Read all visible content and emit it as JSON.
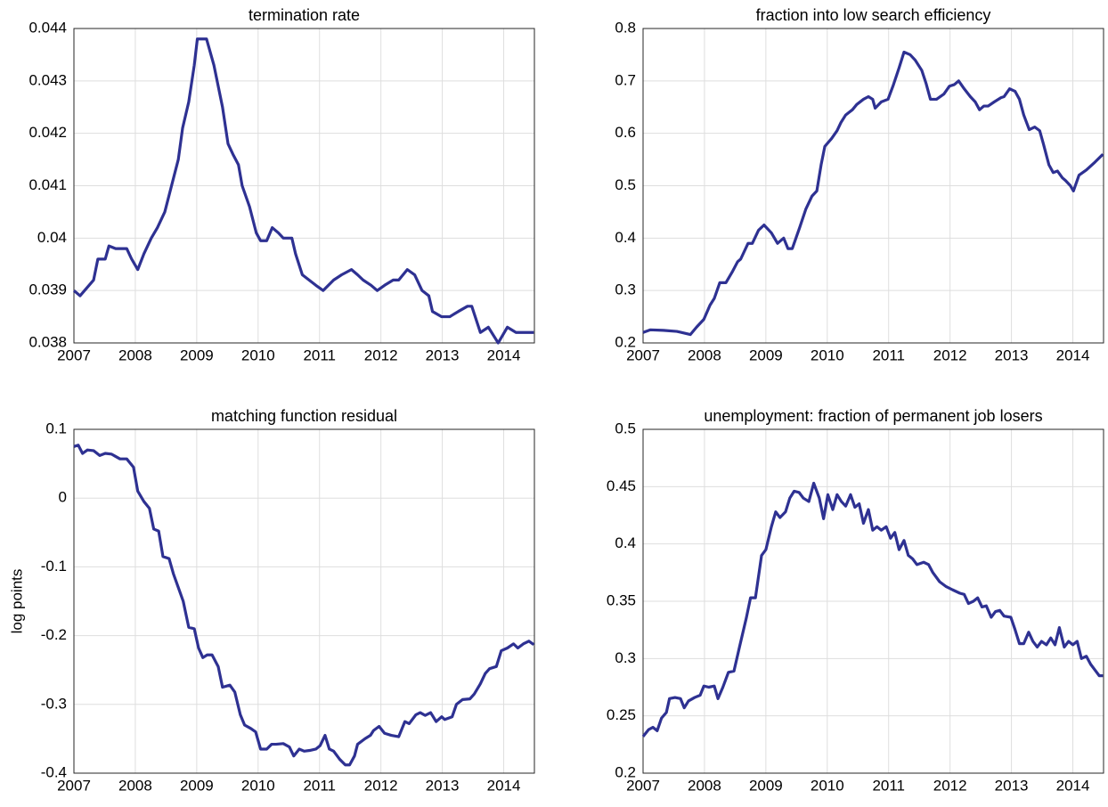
{
  "chart_data": [
    {
      "type": "line",
      "title": "termination rate",
      "color": "#2e3192",
      "grid": true,
      "xlim": [
        2007,
        2014.5
      ],
      "xticks": [
        2007,
        2008,
        2009,
        2010,
        2011,
        2012,
        2013,
        2014
      ],
      "ylim": [
        0.038,
        0.044
      ],
      "yticks": [
        0.038,
        0.039,
        0.04,
        0.041,
        0.042,
        0.043,
        0.044
      ],
      "x": [
        2007.0,
        2007.1,
        2007.32,
        2007.39,
        2007.51,
        2007.57,
        2007.68,
        2007.86,
        2007.94,
        2008.04,
        2008.14,
        2008.26,
        2008.36,
        2008.48,
        2008.59,
        2008.7,
        2008.77,
        2008.87,
        2008.96,
        2009.01,
        2009.16,
        2009.28,
        2009.42,
        2009.51,
        2009.59,
        2009.68,
        2009.74,
        2009.86,
        2009.97,
        2010.04,
        2010.14,
        2010.23,
        2010.33,
        2010.41,
        2010.55,
        2010.61,
        2010.72,
        2010.83,
        2010.94,
        2011.06,
        2011.23,
        2011.36,
        2011.52,
        2011.62,
        2011.71,
        2011.84,
        2011.94,
        2012.06,
        2012.2,
        2012.29,
        2012.43,
        2012.55,
        2012.67,
        2012.78,
        2012.84,
        2012.99,
        2013.12,
        2013.26,
        2013.41,
        2013.48,
        2013.62,
        2013.75,
        2013.91,
        2014.06,
        2014.2,
        2014.42,
        2014.49
      ],
      "values": [
        0.039,
        0.0389,
        0.0392,
        0.0396,
        0.0396,
        0.03985,
        0.0398,
        0.0398,
        0.0396,
        0.0394,
        0.0397,
        0.04,
        0.0402,
        0.0405,
        0.041,
        0.0415,
        0.0421,
        0.0426,
        0.0433,
        0.0438,
        0.0438,
        0.0433,
        0.0425,
        0.0418,
        0.0416,
        0.0414,
        0.041,
        0.0406,
        0.0401,
        0.03995,
        0.03995,
        0.0402,
        0.0401,
        0.04,
        0.04,
        0.0397,
        0.0393,
        0.0392,
        0.0391,
        0.039,
        0.0392,
        0.0393,
        0.0394,
        0.0393,
        0.0392,
        0.0391,
        0.039,
        0.0391,
        0.0392,
        0.0392,
        0.0394,
        0.0393,
        0.039,
        0.0389,
        0.0386,
        0.0385,
        0.0385,
        0.0386,
        0.0387,
        0.0387,
        0.0382,
        0.0383,
        0.038,
        0.0383,
        0.0382,
        0.0382,
        0.0382
      ]
    },
    {
      "type": "line",
      "title": "fraction into low search efficiency",
      "color": "#2e3192",
      "grid": true,
      "xlim": [
        2007,
        2014.5
      ],
      "xticks": [
        2007,
        2008,
        2009,
        2010,
        2011,
        2012,
        2013,
        2014
      ],
      "ylim": [
        0.2,
        0.8
      ],
      "yticks": [
        0.2,
        0.3,
        0.4,
        0.5,
        0.6,
        0.7,
        0.8
      ],
      "x": [
        2007.0,
        2007.12,
        2007.33,
        2007.55,
        2007.7,
        2007.77,
        2007.87,
        2007.99,
        2008.09,
        2008.16,
        2008.25,
        2008.35,
        2008.45,
        2008.54,
        2008.59,
        2008.71,
        2008.78,
        2008.88,
        2008.97,
        2009.09,
        2009.19,
        2009.29,
        2009.36,
        2009.43,
        2009.55,
        2009.65,
        2009.75,
        2009.83,
        2009.9,
        2009.96,
        2010.07,
        2010.16,
        2010.22,
        2010.3,
        2010.41,
        2010.48,
        2010.59,
        2010.67,
        2010.74,
        2010.78,
        2010.88,
        2010.99,
        2011.07,
        2011.17,
        2011.25,
        2011.35,
        2011.43,
        2011.54,
        2011.61,
        2011.68,
        2011.78,
        2011.9,
        2011.99,
        2012.07,
        2012.14,
        2012.23,
        2012.33,
        2012.41,
        2012.48,
        2012.55,
        2012.62,
        2012.72,
        2012.83,
        2012.88,
        2012.97,
        2013.06,
        2013.13,
        2013.2,
        2013.29,
        2013.38,
        2013.46,
        2013.52,
        2013.61,
        2013.68,
        2013.75,
        2013.83,
        2013.88,
        2013.96,
        2014.01,
        2014.1,
        2014.22,
        2014.36,
        2014.49
      ],
      "values": [
        0.22,
        0.225,
        0.224,
        0.222,
        0.218,
        0.216,
        0.23,
        0.245,
        0.272,
        0.285,
        0.315,
        0.315,
        0.335,
        0.355,
        0.36,
        0.39,
        0.39,
        0.415,
        0.425,
        0.41,
        0.39,
        0.4,
        0.38,
        0.38,
        0.42,
        0.455,
        0.48,
        0.49,
        0.54,
        0.575,
        0.59,
        0.605,
        0.62,
        0.635,
        0.645,
        0.655,
        0.665,
        0.67,
        0.665,
        0.648,
        0.66,
        0.665,
        0.69,
        0.725,
        0.755,
        0.75,
        0.74,
        0.72,
        0.695,
        0.665,
        0.665,
        0.675,
        0.69,
        0.693,
        0.7,
        0.685,
        0.67,
        0.66,
        0.645,
        0.652,
        0.652,
        0.66,
        0.668,
        0.67,
        0.685,
        0.68,
        0.665,
        0.635,
        0.607,
        0.612,
        0.605,
        0.58,
        0.54,
        0.525,
        0.528,
        0.515,
        0.51,
        0.5,
        0.49,
        0.52,
        0.53,
        0.545,
        0.56
      ]
    },
    {
      "type": "line",
      "title": "matching function residual",
      "ylabel": "log points",
      "color": "#2e3192",
      "grid": true,
      "xlim": [
        2007,
        2014.5
      ],
      "xticks": [
        2007,
        2008,
        2009,
        2010,
        2011,
        2012,
        2013,
        2014
      ],
      "ylim": [
        -0.4,
        0.1
      ],
      "yticks": [
        -0.4,
        -0.3,
        -0.2,
        -0.1,
        0,
        0.1
      ],
      "x": [
        2007.0,
        2007.07,
        2007.14,
        2007.22,
        2007.32,
        2007.42,
        2007.51,
        2007.61,
        2007.75,
        2007.86,
        2007.97,
        2008.04,
        2008.14,
        2008.23,
        2008.3,
        2008.38,
        2008.45,
        2008.55,
        2008.62,
        2008.7,
        2008.78,
        2008.87,
        2008.96,
        2009.03,
        2009.1,
        2009.17,
        2009.25,
        2009.35,
        2009.42,
        2009.54,
        2009.62,
        2009.71,
        2009.78,
        2009.88,
        2009.96,
        2010.04,
        2010.14,
        2010.22,
        2010.29,
        2010.41,
        2010.51,
        2010.58,
        2010.67,
        2010.75,
        2010.84,
        2010.94,
        2011.01,
        2011.09,
        2011.16,
        2011.23,
        2011.33,
        2011.42,
        2011.49,
        2011.57,
        2011.62,
        2011.74,
        2011.83,
        2011.88,
        2011.97,
        2012.06,
        2012.17,
        2012.29,
        2012.39,
        2012.46,
        2012.57,
        2012.64,
        2012.72,
        2012.81,
        2012.9,
        2012.99,
        2013.04,
        2013.16,
        2013.23,
        2013.33,
        2013.45,
        2013.52,
        2013.62,
        2013.7,
        2013.77,
        2013.88,
        2013.96,
        2014.06,
        2014.16,
        2014.23,
        2014.32,
        2014.41,
        2014.49
      ],
      "values": [
        0.075,
        0.077,
        0.065,
        0.07,
        0.069,
        0.062,
        0.065,
        0.064,
        0.057,
        0.057,
        0.045,
        0.01,
        -0.005,
        -0.015,
        -0.045,
        -0.048,
        -0.085,
        -0.088,
        -0.11,
        -0.13,
        -0.15,
        -0.188,
        -0.19,
        -0.218,
        -0.232,
        -0.228,
        -0.228,
        -0.245,
        -0.275,
        -0.272,
        -0.282,
        -0.315,
        -0.33,
        -0.335,
        -0.34,
        -0.365,
        -0.365,
        -0.358,
        -0.358,
        -0.357,
        -0.362,
        -0.375,
        -0.365,
        -0.368,
        -0.367,
        -0.365,
        -0.36,
        -0.345,
        -0.365,
        -0.368,
        -0.38,
        -0.388,
        -0.388,
        -0.375,
        -0.358,
        -0.35,
        -0.345,
        -0.338,
        -0.332,
        -0.342,
        -0.345,
        -0.347,
        -0.325,
        -0.328,
        -0.315,
        -0.312,
        -0.316,
        -0.312,
        -0.325,
        -0.318,
        -0.322,
        -0.318,
        -0.3,
        -0.293,
        -0.292,
        -0.285,
        -0.27,
        -0.255,
        -0.248,
        -0.245,
        -0.222,
        -0.218,
        -0.212,
        -0.218,
        -0.212,
        -0.208,
        -0.213
      ]
    },
    {
      "type": "line",
      "title": "unemployment: fraction of permanent job losers",
      "color": "#2e3192",
      "grid": true,
      "xlim": [
        2007,
        2014.5
      ],
      "xticks": [
        2007,
        2008,
        2009,
        2010,
        2011,
        2012,
        2013,
        2014
      ],
      "ylim": [
        0.2,
        0.5
      ],
      "yticks": [
        0.2,
        0.25,
        0.3,
        0.35,
        0.4,
        0.45,
        0.5
      ],
      "x": [
        2007.0,
        2007.09,
        2007.16,
        2007.23,
        2007.3,
        2007.38,
        2007.43,
        2007.52,
        2007.61,
        2007.67,
        2007.74,
        2007.84,
        2007.93,
        2007.99,
        2008.07,
        2008.16,
        2008.22,
        2008.3,
        2008.39,
        2008.48,
        2008.57,
        2008.68,
        2008.75,
        2008.83,
        2008.93,
        2009.0,
        2009.09,
        2009.16,
        2009.23,
        2009.32,
        2009.39,
        2009.46,
        2009.54,
        2009.61,
        2009.7,
        2009.78,
        2009.87,
        2009.94,
        2010.01,
        2010.09,
        2010.16,
        2010.23,
        2010.3,
        2010.38,
        2010.45,
        2010.52,
        2010.59,
        2010.67,
        2010.74,
        2010.81,
        2010.88,
        2010.96,
        2011.03,
        2011.1,
        2011.17,
        2011.25,
        2011.32,
        2011.39,
        2011.46,
        2011.57,
        2011.65,
        2011.72,
        2011.83,
        2011.93,
        2012.04,
        2012.16,
        2012.23,
        2012.3,
        2012.38,
        2012.45,
        2012.52,
        2012.59,
        2012.67,
        2012.74,
        2012.81,
        2012.88,
        2012.99,
        2013.06,
        2013.13,
        2013.2,
        2013.28,
        2013.35,
        2013.42,
        2013.49,
        2013.57,
        2013.64,
        2013.71,
        2013.78,
        2013.86,
        2013.93,
        2014.0,
        2014.07,
        2014.14,
        2014.22,
        2014.29,
        2014.36,
        2014.43,
        2014.49
      ],
      "values": [
        0.232,
        0.238,
        0.24,
        0.237,
        0.248,
        0.253,
        0.265,
        0.266,
        0.265,
        0.257,
        0.263,
        0.266,
        0.268,
        0.276,
        0.275,
        0.276,
        0.265,
        0.275,
        0.288,
        0.289,
        0.31,
        0.335,
        0.353,
        0.353,
        0.39,
        0.395,
        0.415,
        0.428,
        0.423,
        0.428,
        0.44,
        0.446,
        0.445,
        0.44,
        0.437,
        0.453,
        0.44,
        0.422,
        0.443,
        0.43,
        0.443,
        0.437,
        0.433,
        0.443,
        0.432,
        0.435,
        0.418,
        0.43,
        0.412,
        0.415,
        0.412,
        0.415,
        0.405,
        0.41,
        0.395,
        0.403,
        0.39,
        0.387,
        0.382,
        0.384,
        0.382,
        0.375,
        0.367,
        0.363,
        0.36,
        0.357,
        0.356,
        0.348,
        0.35,
        0.353,
        0.345,
        0.346,
        0.336,
        0.341,
        0.342,
        0.337,
        0.336,
        0.325,
        0.313,
        0.313,
        0.323,
        0.315,
        0.31,
        0.315,
        0.312,
        0.318,
        0.312,
        0.327,
        0.31,
        0.315,
        0.312,
        0.315,
        0.3,
        0.302,
        0.295,
        0.29,
        0.285,
        0.285
      ]
    }
  ]
}
